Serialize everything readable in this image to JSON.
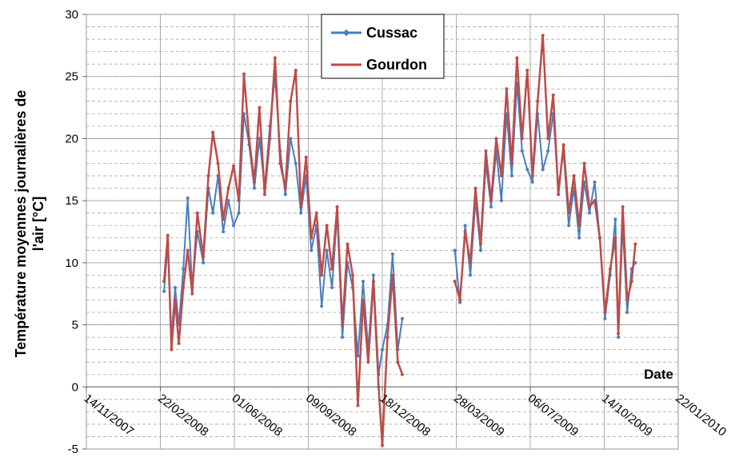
{
  "chart_data": {
    "type": "line",
    "ylabel": [
      "Température moyennes journalières de",
      "l'air [°C]"
    ],
    "xlabel": "Date",
    "x": [
      "2008-02-27",
      "2008-03-03",
      "2008-03-08",
      "2008-03-13",
      "2008-03-18",
      "2008-03-24",
      "2008-03-30",
      "2008-04-05",
      "2008-04-12",
      "2008-04-20",
      "2008-04-27",
      "2008-05-03",
      "2008-05-10",
      "2008-05-17",
      "2008-05-24",
      "2008-05-31",
      "2008-06-07",
      "2008-06-14",
      "2008-06-21",
      "2008-06-28",
      "2008-07-05",
      "2008-07-12",
      "2008-07-19",
      "2008-07-26",
      "2008-08-02",
      "2008-08-09",
      "2008-08-16",
      "2008-08-23",
      "2008-08-30",
      "2008-09-06",
      "2008-09-13",
      "2008-09-20",
      "2008-09-27",
      "2008-10-04",
      "2008-10-11",
      "2008-10-18",
      "2008-10-25",
      "2008-11-01",
      "2008-11-08",
      "2008-11-15",
      "2008-11-22",
      "2008-11-29",
      "2008-12-06",
      "2008-12-13",
      "2008-12-18",
      "2008-12-25",
      "2009-01-01",
      "2009-01-08",
      "2009-01-14",
      "2009-02-20",
      "2009-03-26",
      "2009-04-02",
      "2009-04-09",
      "2009-04-16",
      "2009-04-23",
      "2009-04-30",
      "2009-05-07",
      "2009-05-14",
      "2009-05-21",
      "2009-05-28",
      "2009-06-04",
      "2009-06-11",
      "2009-06-18",
      "2009-06-25",
      "2009-07-02",
      "2009-07-09",
      "2009-07-16",
      "2009-07-23",
      "2009-07-30",
      "2009-08-06",
      "2009-08-13",
      "2009-08-20",
      "2009-08-27",
      "2009-09-03",
      "2009-09-10",
      "2009-09-17",
      "2009-09-24",
      "2009-10-01",
      "2009-10-08",
      "2009-10-15",
      "2009-10-22",
      "2009-10-29",
      "2009-11-02",
      "2009-11-08",
      "2009-11-14",
      "2009-11-20",
      "2009-11-25"
    ],
    "series": [
      {
        "name": "Cussac",
        "color": "#4a7ebb",
        "values": [
          7.7,
          11.5,
          4,
          8,
          5,
          9.5,
          15.2,
          8,
          12.5,
          10,
          16,
          14,
          17,
          12.5,
          15,
          13,
          14,
          22,
          19.5,
          16,
          20,
          16,
          21,
          25,
          19,
          15.5,
          20,
          18,
          14,
          17,
          11,
          13,
          6.5,
          11,
          8,
          14,
          4,
          10,
          8,
          2.5,
          8.5,
          3,
          9,
          1,
          3,
          5,
          10.7,
          3,
          5.5,
          null,
          11,
          6.8,
          13,
          9,
          15,
          11,
          18,
          14.5,
          19,
          15,
          22,
          17,
          24.5,
          19,
          17.5,
          16.5,
          22,
          17.5,
          19,
          22,
          16,
          19,
          13,
          16,
          12,
          16.5,
          14,
          16.5,
          12,
          5.5,
          9,
          13.5,
          4,
          13,
          6,
          9.5,
          10
        ]
      },
      {
        "name": "Gourdon",
        "color": "#be4b48",
        "values": [
          8.5,
          12.2,
          3,
          7,
          3.5,
          8,
          11,
          7.5,
          14,
          10.5,
          17,
          20.5,
          18,
          13.5,
          16,
          17.8,
          15,
          25.2,
          20,
          16.5,
          22.5,
          15.5,
          20,
          26.5,
          18,
          16,
          23,
          25.5,
          14.5,
          18.5,
          12,
          14,
          9,
          13,
          9.5,
          14.5,
          5,
          11.5,
          9,
          -1.5,
          7,
          2,
          8.5,
          0,
          -4.7,
          4,
          9,
          2,
          1,
          null,
          8.5,
          7,
          12.5,
          10,
          16,
          11.5,
          19,
          15,
          20,
          17,
          24,
          18,
          26.5,
          20,
          25.5,
          17,
          23,
          28.3,
          20,
          23.5,
          15.5,
          19.5,
          14,
          17,
          13,
          18,
          14.5,
          15,
          12,
          6,
          9.5,
          12,
          4.3,
          14.5,
          7,
          8.5,
          11.5
        ]
      }
    ],
    "xlim": [
      "2007-11-14",
      "2010-01-22"
    ],
    "xticks": [
      {
        "value": "2007-11-14",
        "label": "14/11/2007"
      },
      {
        "value": "2008-02-22",
        "label": "22/02/2008"
      },
      {
        "value": "2008-06-01",
        "label": "01/06/2008"
      },
      {
        "value": "2008-09-09",
        "label": "09/09/2008"
      },
      {
        "value": "2008-12-18",
        "label": "18/12/2008"
      },
      {
        "value": "2009-03-28",
        "label": "28/03/2009"
      },
      {
        "value": "2009-07-06",
        "label": "06/07/2009"
      },
      {
        "value": "2009-10-14",
        "label": "14/10/2009"
      },
      {
        "value": "2010-01-22",
        "label": "22/01/2010"
      }
    ],
    "ylim": [
      -5,
      30
    ],
    "yticks": [
      -5,
      0,
      5,
      10,
      15,
      20,
      25,
      30
    ],
    "grid": true
  }
}
